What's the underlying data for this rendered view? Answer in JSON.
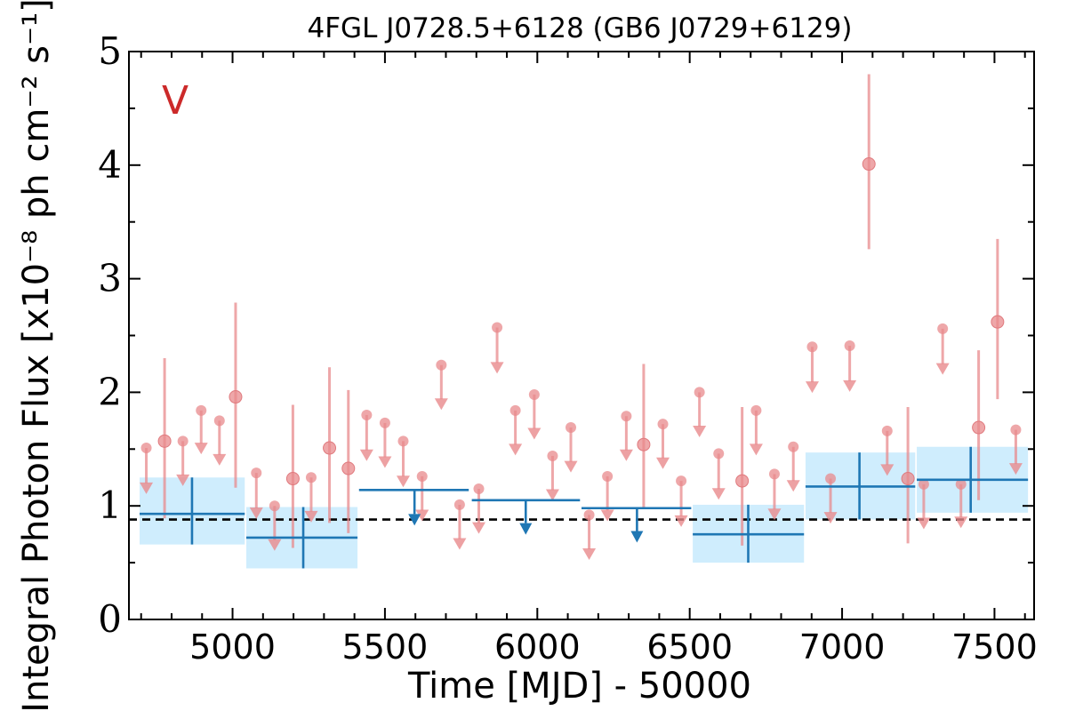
{
  "chart_data": {
    "type": "scatter",
    "title": "4FGL J0728.5+6128 (GB6 J0729+6129)",
    "xlabel": "Time [MJD] - 50000",
    "ylabel": "Integral Photon Flux [x10⁻⁸ ph cm⁻² s⁻¹]",
    "panel_label": "V",
    "xlim": [
      4660,
      7630
    ],
    "ylim": [
      0,
      5
    ],
    "xticks": [
      5000,
      5500,
      6000,
      6500,
      7000,
      7500
    ],
    "xtick_labels": [
      "5000",
      "5500",
      "6000",
      "6500",
      "7000",
      "7500"
    ],
    "yticks": [
      0,
      1,
      2,
      3,
      4,
      5
    ],
    "ytick_labels": [
      "0",
      "1",
      "2",
      "3",
      "4",
      "5"
    ],
    "grid": false,
    "mean_flux_line": 0.88,
    "colors": {
      "monthly": "#e8898c",
      "monthly_edge": "#e07a7e",
      "yearly": "#1f77b4",
      "yearly_band": "#cfedfd",
      "panel_label": "#cc2a2a",
      "mean_line": "#000000"
    },
    "monthly_detections": [
      {
        "x": 4777,
        "y": 1.57,
        "ylo": 0.89,
        "yhi": 2.3
      },
      {
        "x": 5010,
        "y": 1.96,
        "ylo": 1.16,
        "yhi": 2.79
      },
      {
        "x": 5198,
        "y": 1.24,
        "ylo": 0.63,
        "yhi": 1.89
      },
      {
        "x": 5318,
        "y": 1.51,
        "ylo": 0.85,
        "yhi": 2.22
      },
      {
        "x": 5380,
        "y": 1.33,
        "ylo": 0.76,
        "yhi": 2.02
      },
      {
        "x": 6349,
        "y": 1.54,
        "ylo": 0.99,
        "yhi": 2.25
      },
      {
        "x": 6672,
        "y": 1.22,
        "ylo": 0.65,
        "yhi": 1.87
      },
      {
        "x": 7088,
        "y": 4.01,
        "ylo": 3.26,
        "yhi": 4.8
      },
      {
        "x": 7216,
        "y": 1.24,
        "ylo": 0.67,
        "yhi": 1.87
      },
      {
        "x": 7448,
        "y": 1.69,
        "ylo": 1.05,
        "yhi": 2.37
      },
      {
        "x": 7510,
        "y": 2.62,
        "ylo": 1.94,
        "yhi": 3.35
      }
    ],
    "monthly_upper_limits": [
      {
        "x": 4717,
        "y": 1.51,
        "arrow_to": 1.12
      },
      {
        "x": 4837,
        "y": 1.57,
        "arrow_to": 1.19
      },
      {
        "x": 4897,
        "y": 1.84,
        "arrow_to": 1.47
      },
      {
        "x": 4957,
        "y": 1.75,
        "arrow_to": 1.37
      },
      {
        "x": 5078,
        "y": 1.29,
        "arrow_to": 0.9
      },
      {
        "x": 5138,
        "y": 1.0,
        "arrow_to": 0.62
      },
      {
        "x": 5258,
        "y": 1.25,
        "arrow_to": 0.87
      },
      {
        "x": 5440,
        "y": 1.8,
        "arrow_to": 1.41
      },
      {
        "x": 5500,
        "y": 1.73,
        "arrow_to": 1.35
      },
      {
        "x": 5560,
        "y": 1.57,
        "arrow_to": 1.18
      },
      {
        "x": 5622,
        "y": 1.26,
        "arrow_to": 0.88
      },
      {
        "x": 5685,
        "y": 2.24,
        "arrow_to": 1.86
      },
      {
        "x": 5745,
        "y": 1.01,
        "arrow_to": 0.63
      },
      {
        "x": 5808,
        "y": 1.15,
        "arrow_to": 0.77
      },
      {
        "x": 5868,
        "y": 2.57,
        "arrow_to": 2.18
      },
      {
        "x": 5928,
        "y": 1.84,
        "arrow_to": 1.46
      },
      {
        "x": 5990,
        "y": 1.98,
        "arrow_to": 1.6
      },
      {
        "x": 6050,
        "y": 1.44,
        "arrow_to": 1.06
      },
      {
        "x": 6110,
        "y": 1.69,
        "arrow_to": 1.31
      },
      {
        "x": 6170,
        "y": 0.92,
        "arrow_to": 0.54
      },
      {
        "x": 6230,
        "y": 1.26,
        "arrow_to": 0.88
      },
      {
        "x": 6292,
        "y": 1.79,
        "arrow_to": 1.41
      },
      {
        "x": 6412,
        "y": 1.72,
        "arrow_to": 1.34
      },
      {
        "x": 6472,
        "y": 1.22,
        "arrow_to": 0.83
      },
      {
        "x": 6532,
        "y": 2.0,
        "arrow_to": 1.62
      },
      {
        "x": 6595,
        "y": 1.46,
        "arrow_to": 1.07
      },
      {
        "x": 6718,
        "y": 1.84,
        "arrow_to": 1.46
      },
      {
        "x": 6778,
        "y": 1.28,
        "arrow_to": 0.89
      },
      {
        "x": 6840,
        "y": 1.52,
        "arrow_to": 1.14
      },
      {
        "x": 6902,
        "y": 2.4,
        "arrow_to": 2.01
      },
      {
        "x": 6962,
        "y": 1.24,
        "arrow_to": 0.86
      },
      {
        "x": 7025,
        "y": 2.41,
        "arrow_to": 2.02
      },
      {
        "x": 7148,
        "y": 1.66,
        "arrow_to": 1.28
      },
      {
        "x": 7268,
        "y": 1.19,
        "arrow_to": 0.81
      },
      {
        "x": 7330,
        "y": 2.56,
        "arrow_to": 2.17
      },
      {
        "x": 7390,
        "y": 1.19,
        "arrow_to": 0.82
      },
      {
        "x": 7570,
        "y": 1.67,
        "arrow_to": 1.29
      }
    ],
    "yearly_detections": [
      {
        "x": 4867,
        "xlo": 4695,
        "xhi": 5040,
        "y": 0.93,
        "ylo": 0.66,
        "yhi": 1.25
      },
      {
        "x": 5232,
        "xlo": 5045,
        "xhi": 5410,
        "y": 0.72,
        "ylo": 0.45,
        "yhi": 0.99
      },
      {
        "x": 6692,
        "xlo": 6510,
        "xhi": 6875,
        "y": 0.75,
        "ylo": 0.5,
        "yhi": 1.01
      },
      {
        "x": 7057,
        "xlo": 6880,
        "xhi": 7240,
        "y": 1.17,
        "ylo": 0.88,
        "yhi": 1.47
      },
      {
        "x": 7422,
        "xlo": 7245,
        "xhi": 7610,
        "y": 1.23,
        "ylo": 0.94,
        "yhi": 1.52
      }
    ],
    "yearly_upper_limits": [
      {
        "x": 5597,
        "xlo": 5415,
        "xhi": 5775,
        "y": 1.14,
        "arrow_to": 0.85
      },
      {
        "x": 5962,
        "xlo": 5785,
        "xhi": 6140,
        "y": 1.05,
        "arrow_to": 0.77
      },
      {
        "x": 6327,
        "xlo": 6145,
        "xhi": 6505,
        "y": 0.98,
        "arrow_to": 0.7
      }
    ]
  }
}
